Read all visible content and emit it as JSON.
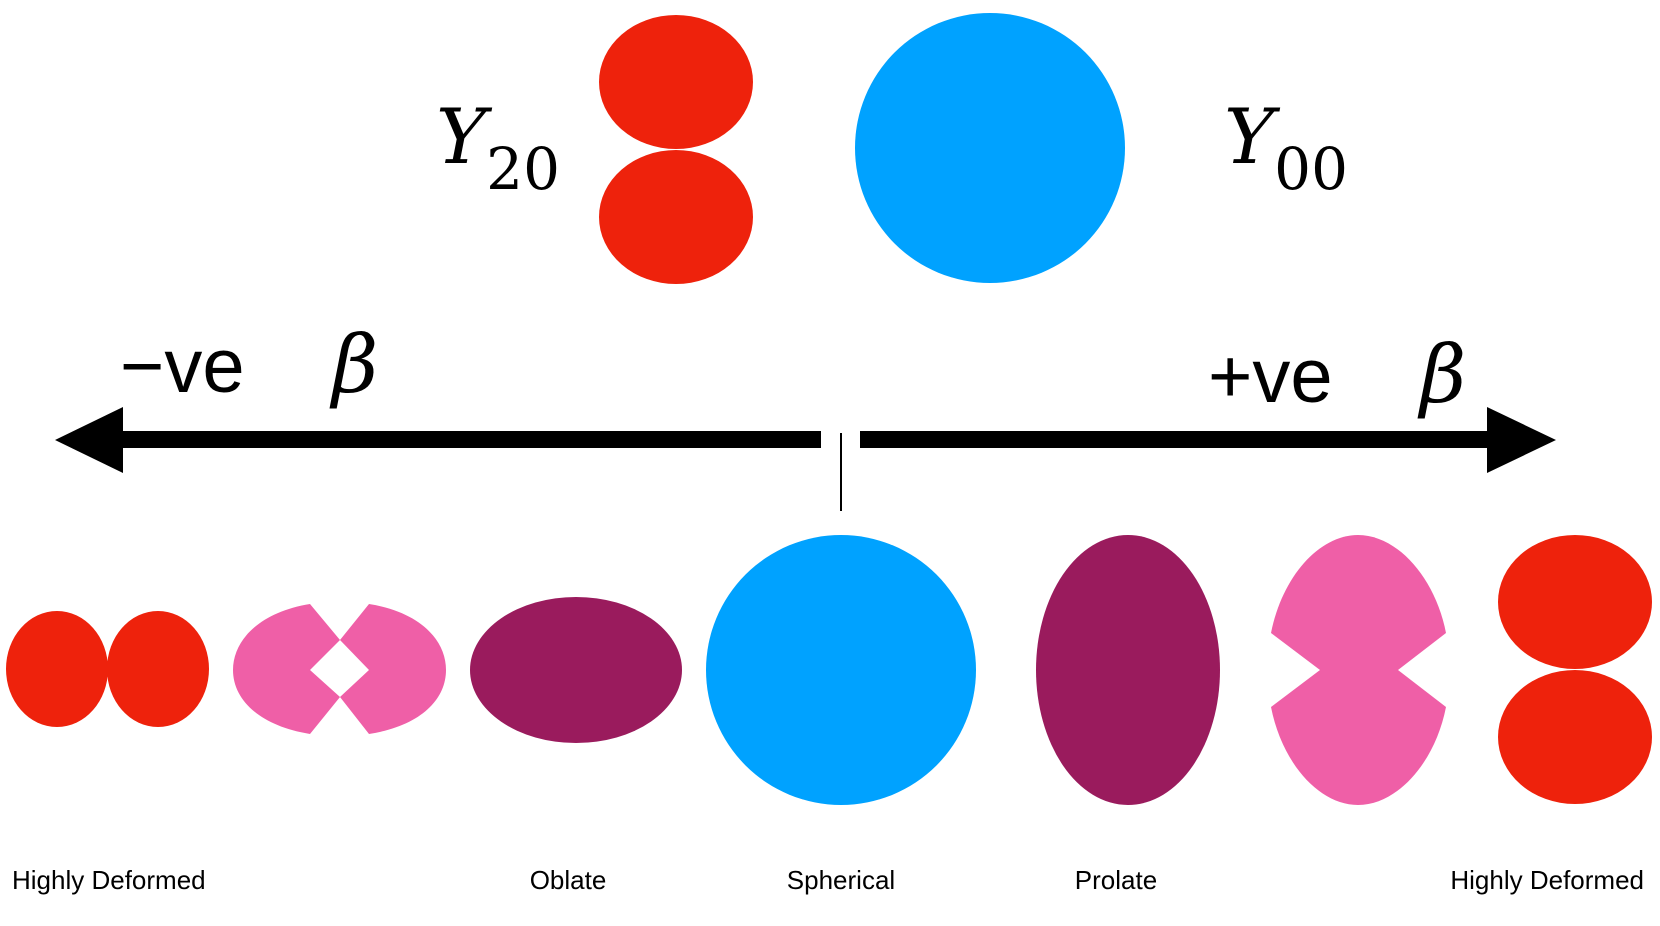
{
  "harmonics": {
    "y20": {
      "symbol": "Y",
      "subscript": "20"
    },
    "y00": {
      "symbol": "Y",
      "subscript": "00"
    }
  },
  "axis": {
    "negative": {
      "sign": "−ve",
      "symbol": "β"
    },
    "positive": {
      "sign": "+ve",
      "symbol": "β"
    }
  },
  "labels": {
    "highly_deformed_left": "Highly Deformed",
    "oblate": "Oblate",
    "spherical": "Spherical",
    "prolate": "Prolate",
    "highly_deformed_right": "Highly Deformed"
  },
  "colors": {
    "red": "#EE220C",
    "blue": "#00A2FF",
    "pink": "#EF5FA7",
    "purple": "#9A1B5D",
    "black": "#000000"
  }
}
